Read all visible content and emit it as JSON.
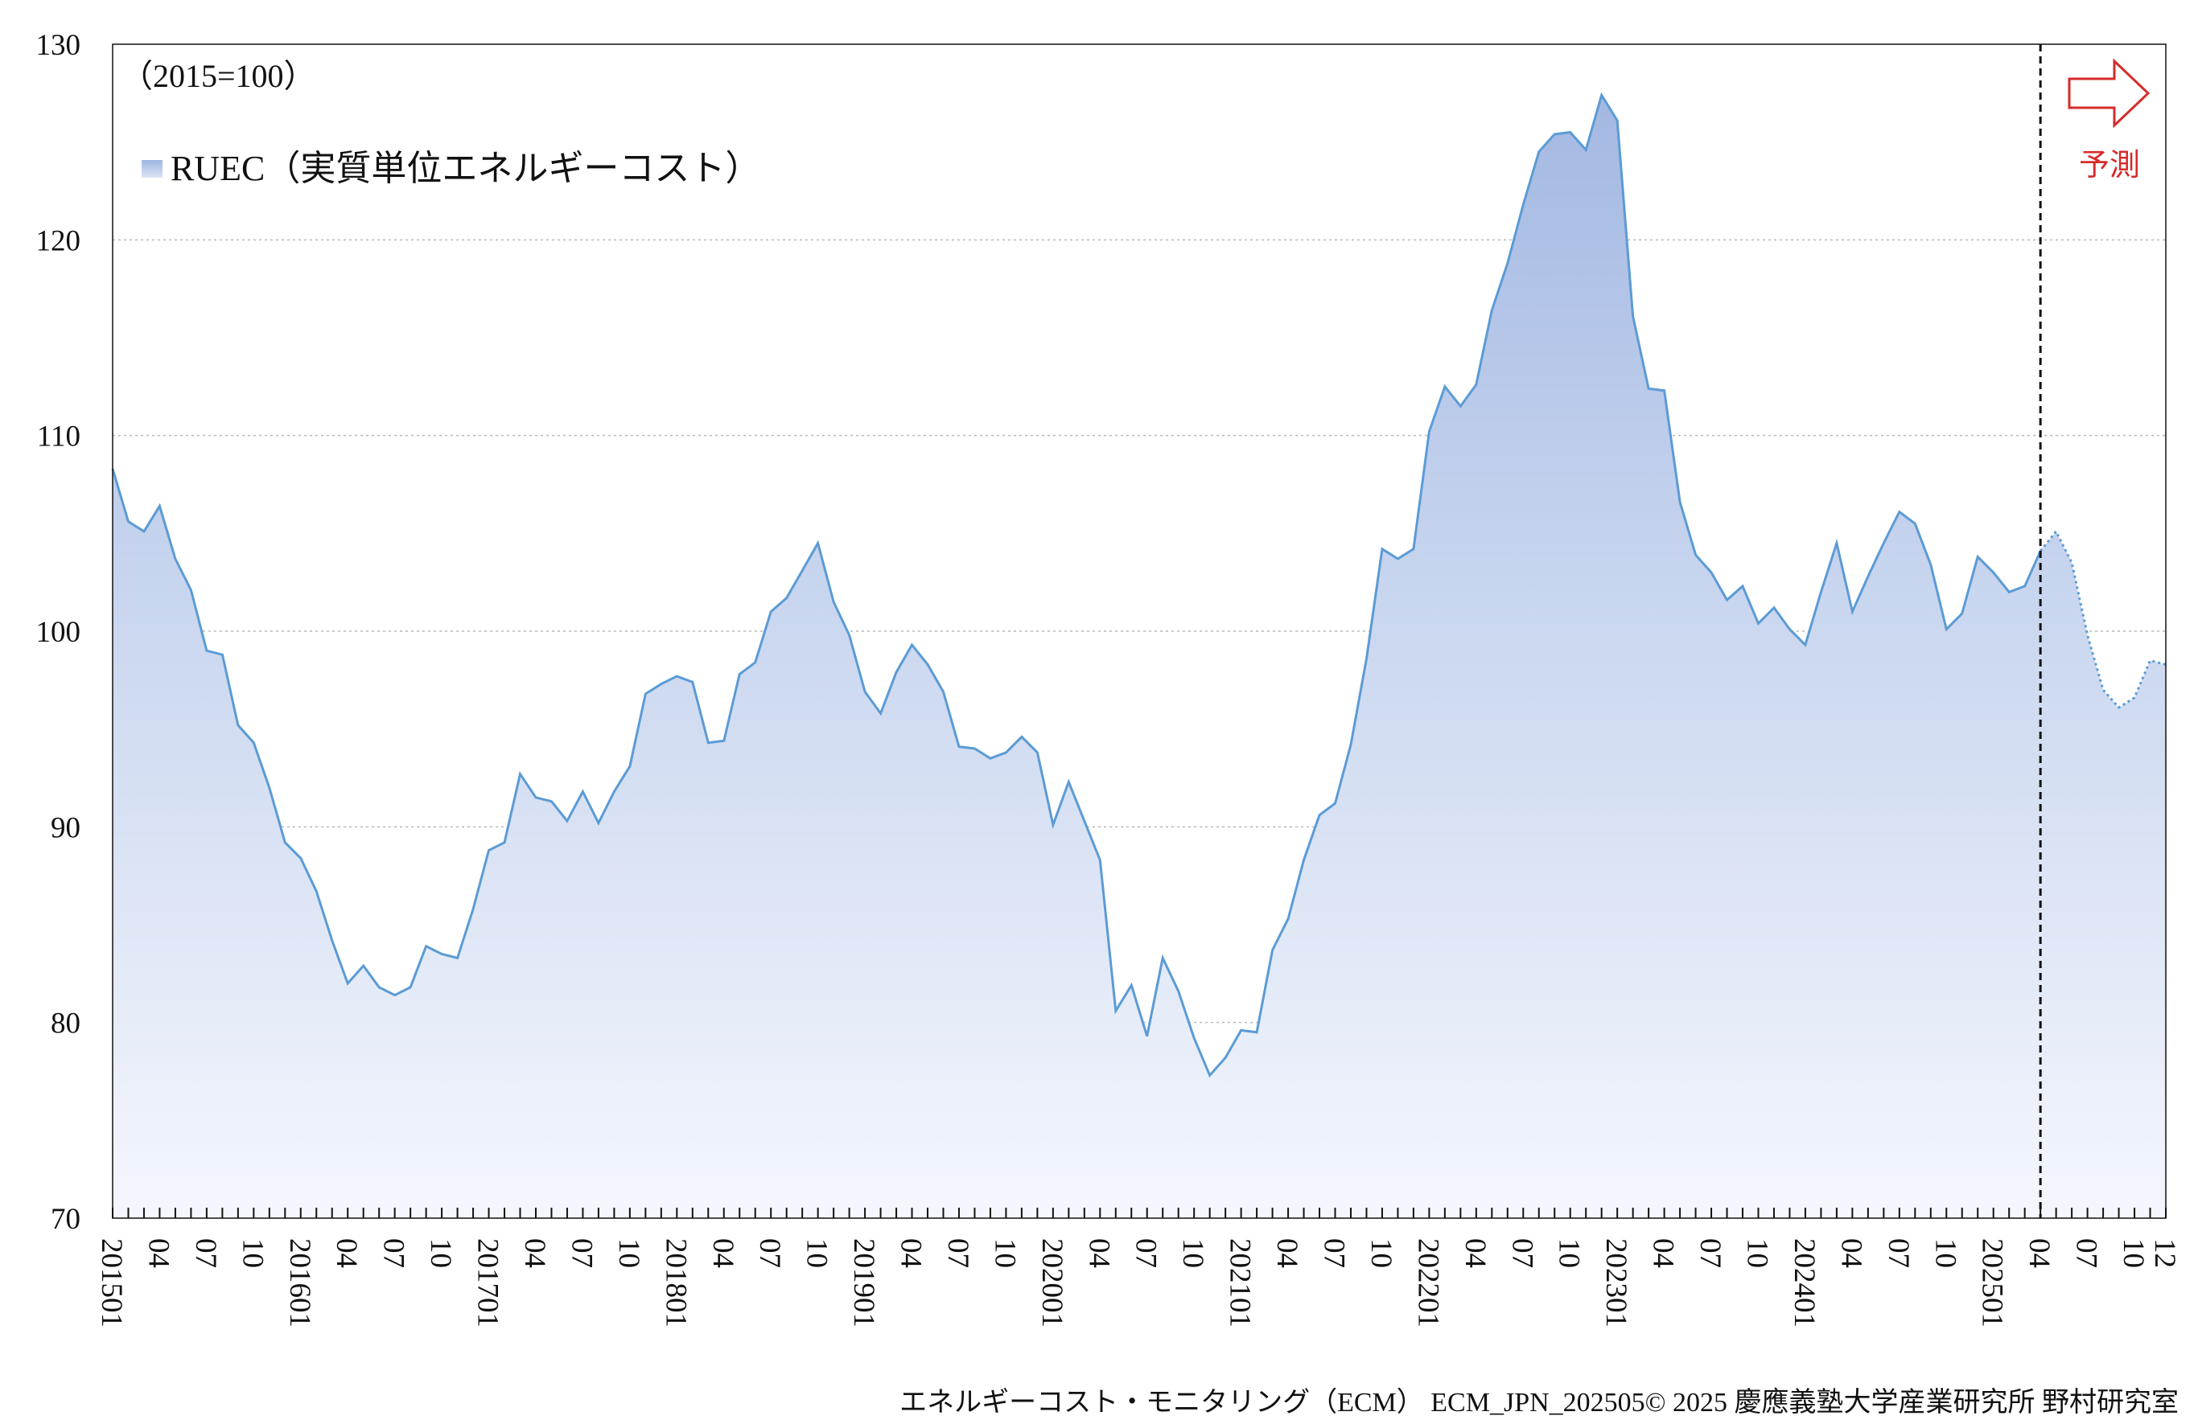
{
  "chart_data": {
    "type": "area",
    "unit_note": "（2015=100）",
    "legend": {
      "label": "RUEC（実質単位エネルギーコスト）",
      "position": "top-left",
      "color": "#a9bfe6"
    },
    "forecast_label": "予測",
    "forecast_start": "202504",
    "ylim": [
      70,
      130
    ],
    "yticks": [
      70,
      80,
      90,
      100,
      110,
      120,
      130
    ],
    "grid": true,
    "line_color": "#5b9bd5",
    "forecast_color": "#d62b2b",
    "xlabel": "",
    "ylabel": "",
    "x_ticks": [
      {
        "i": 0,
        "label": "201501"
      },
      {
        "i": 3,
        "label": "04"
      },
      {
        "i": 6,
        "label": "07"
      },
      {
        "i": 9,
        "label": "10"
      },
      {
        "i": 12,
        "label": "201601"
      },
      {
        "i": 15,
        "label": "04"
      },
      {
        "i": 18,
        "label": "07"
      },
      {
        "i": 21,
        "label": "10"
      },
      {
        "i": 24,
        "label": "201701"
      },
      {
        "i": 27,
        "label": "04"
      },
      {
        "i": 30,
        "label": "07"
      },
      {
        "i": 33,
        "label": "10"
      },
      {
        "i": 36,
        "label": "201801"
      },
      {
        "i": 39,
        "label": "04"
      },
      {
        "i": 42,
        "label": "07"
      },
      {
        "i": 45,
        "label": "10"
      },
      {
        "i": 48,
        "label": "201901"
      },
      {
        "i": 51,
        "label": "04"
      },
      {
        "i": 54,
        "label": "07"
      },
      {
        "i": 57,
        "label": "10"
      },
      {
        "i": 60,
        "label": "202001"
      },
      {
        "i": 63,
        "label": "04"
      },
      {
        "i": 66,
        "label": "07"
      },
      {
        "i": 69,
        "label": "10"
      },
      {
        "i": 72,
        "label": "202101"
      },
      {
        "i": 75,
        "label": "04"
      },
      {
        "i": 78,
        "label": "07"
      },
      {
        "i": 81,
        "label": "10"
      },
      {
        "i": 84,
        "label": "202201"
      },
      {
        "i": 87,
        "label": "04"
      },
      {
        "i": 90,
        "label": "07"
      },
      {
        "i": 93,
        "label": "10"
      },
      {
        "i": 96,
        "label": "202301"
      },
      {
        "i": 99,
        "label": "04"
      },
      {
        "i": 102,
        "label": "07"
      },
      {
        "i": 105,
        "label": "10"
      },
      {
        "i": 108,
        "label": "202401"
      },
      {
        "i": 111,
        "label": "04"
      },
      {
        "i": 114,
        "label": "07"
      },
      {
        "i": 117,
        "label": "10"
      },
      {
        "i": 120,
        "label": "202501"
      },
      {
        "i": 123,
        "label": "04"
      },
      {
        "i": 126,
        "label": "07"
      },
      {
        "i": 129,
        "label": "10"
      },
      {
        "i": 131,
        "label": "12"
      }
    ],
    "series": [
      {
        "start": "201501",
        "values": [
          108.3,
          105.6,
          105.1,
          106.4,
          103.7,
          102.1,
          99.0,
          98.8,
          95.2,
          94.3,
          92.0,
          89.2,
          88.4,
          86.7,
          84.2,
          82.0,
          82.9,
          81.8,
          81.4,
          81.8,
          83.9,
          83.5,
          83.3,
          85.8,
          88.8,
          89.2,
          92.7,
          91.5,
          91.3,
          90.3,
          91.8,
          90.2,
          91.8,
          93.1,
          96.8,
          97.3,
          97.7,
          97.4,
          94.3,
          94.4,
          97.8,
          98.4,
          101.0,
          101.7,
          103.1,
          104.5,
          101.5,
          99.8,
          96.9,
          95.8,
          97.9,
          99.3,
          98.3,
          96.9,
          94.1,
          94.0,
          93.5,
          93.8,
          94.6,
          93.8,
          90.1,
          92.3,
          90.3,
          88.3,
          80.6,
          81.9,
          79.3,
          83.3,
          81.6,
          79.2,
          77.3,
          78.2,
          79.6,
          79.5,
          83.7,
          85.3,
          88.3,
          90.6,
          91.2,
          94.2,
          98.6,
          104.2,
          103.7,
          104.2,
          110.2,
          112.5,
          111.5,
          112.6,
          116.4,
          118.8,
          121.8,
          124.5,
          125.4,
          125.5,
          124.6,
          127.4,
          126.1,
          116.1,
          112.4,
          112.3,
          106.6,
          103.9,
          103.0,
          101.6,
          102.3,
          100.4,
          101.2,
          100.1,
          99.3,
          102.0,
          104.5,
          101.0,
          102.8,
          104.5,
          106.1,
          105.5,
          103.4,
          100.1,
          100.9,
          103.8,
          103.0,
          102.0,
          102.3,
          104.1
        ]
      },
      {
        "start": "202504",
        "forecast": true,
        "values": [
          104.1,
          105.1,
          103.5,
          99.8,
          97.0,
          96.1,
          96.6,
          98.5,
          98.3
        ]
      }
    ]
  },
  "footer": "エネルギーコスト・モニタリング（ECM） ECM_JPN_202505© 2025 慶應義塾大学産業研究所 野村研究室"
}
